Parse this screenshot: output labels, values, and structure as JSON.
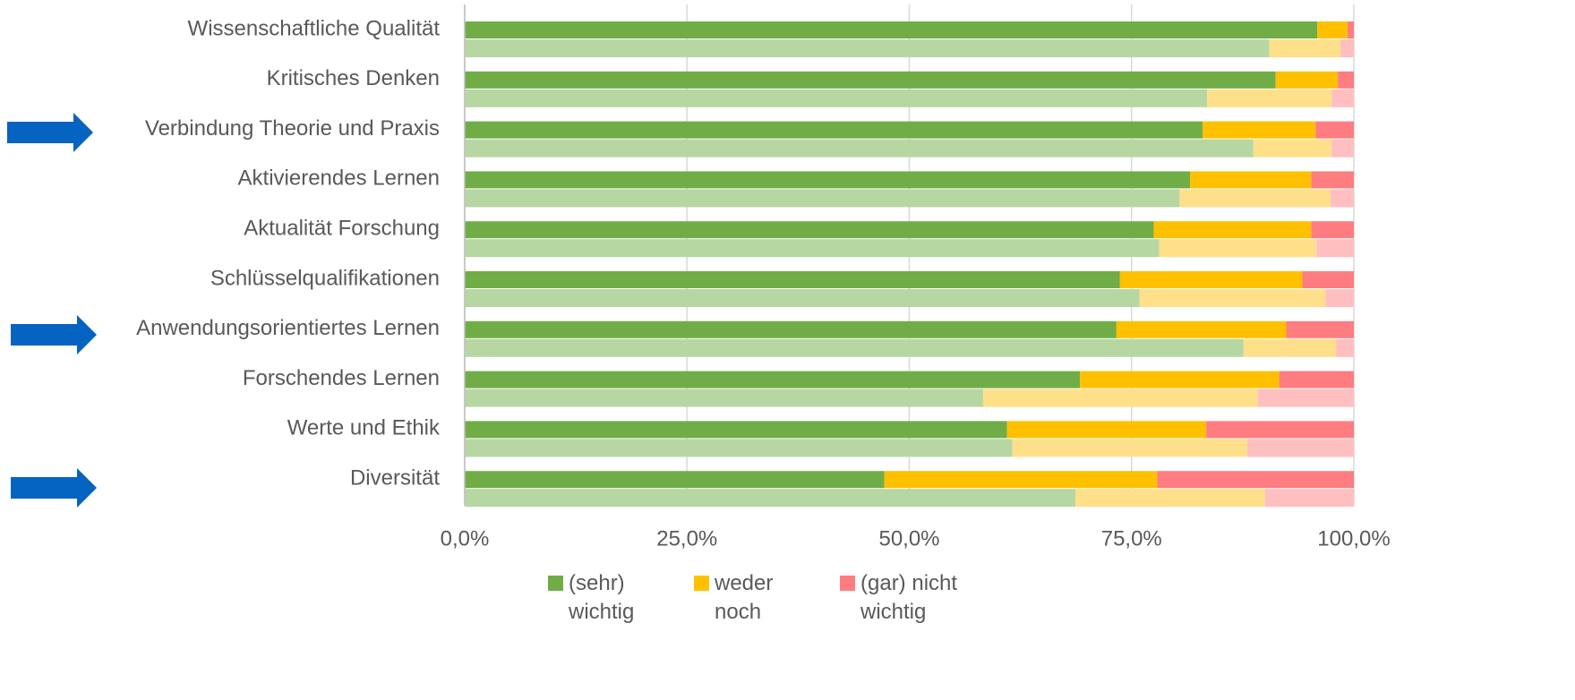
{
  "chart_data": {
    "type": "stacked_bar_horizontal",
    "categories": [
      "Wissenschaftliche Qualität",
      "Kritisches Denken",
      "Verbindung Theorie und Praxis",
      "Aktivierendes Lernen",
      "Aktualität Forschung",
      "Schlüsselqualifikationen",
      "Anwendungsorientiertes Lernen",
      "Forschendes Lernen",
      "Werte und Ethik",
      "Diversität"
    ],
    "series": [
      {
        "name": "(sehr) wichtig",
        "color": "#70ad47",
        "stack": 0,
        "values": [
          95.9,
          91.2,
          83.0,
          81.6,
          77.5,
          73.7,
          73.3,
          69.2,
          61.0,
          47.2
        ]
      },
      {
        "name": "weder noch",
        "color": "#ffc000",
        "stack": 0,
        "values": [
          3.4,
          7.0,
          12.7,
          13.6,
          17.7,
          20.5,
          19.1,
          22.4,
          22.4,
          30.7
        ]
      },
      {
        "name": "(gar) nicht wichtig",
        "color": "#ff7c80",
        "stack": 0,
        "values": [
          0.7,
          1.8,
          4.3,
          4.8,
          4.8,
          5.8,
          7.6,
          8.4,
          16.6,
          22.1
        ]
      },
      {
        "color": "#b7d7a2",
        "stack": 1,
        "values": [
          90.5,
          83.5,
          88.7,
          80.4,
          78.1,
          75.9,
          87.6,
          58.3,
          61.6,
          68.7
        ]
      },
      {
        "color": "#ffe08a",
        "stack": 1,
        "values": [
          8.0,
          14.0,
          8.8,
          17.0,
          17.7,
          20.9,
          10.4,
          30.9,
          26.4,
          21.3
        ]
      },
      {
        "color": "#ffbfc0",
        "stack": 1,
        "values": [
          1.5,
          2.5,
          2.5,
          2.6,
          4.2,
          3.2,
          2.0,
          10.8,
          12.0,
          10.0
        ]
      }
    ],
    "xlim": [
      0,
      100
    ],
    "xticks": [
      {
        "value": 0,
        "label": "0,0%"
      },
      {
        "value": 25,
        "label": "25,0%"
      },
      {
        "value": 50,
        "label": "50,0%"
      },
      {
        "value": 75,
        "label": "75,0%"
      },
      {
        "value": 100,
        "label": "100,0%"
      }
    ],
    "grid": true
  }
}
